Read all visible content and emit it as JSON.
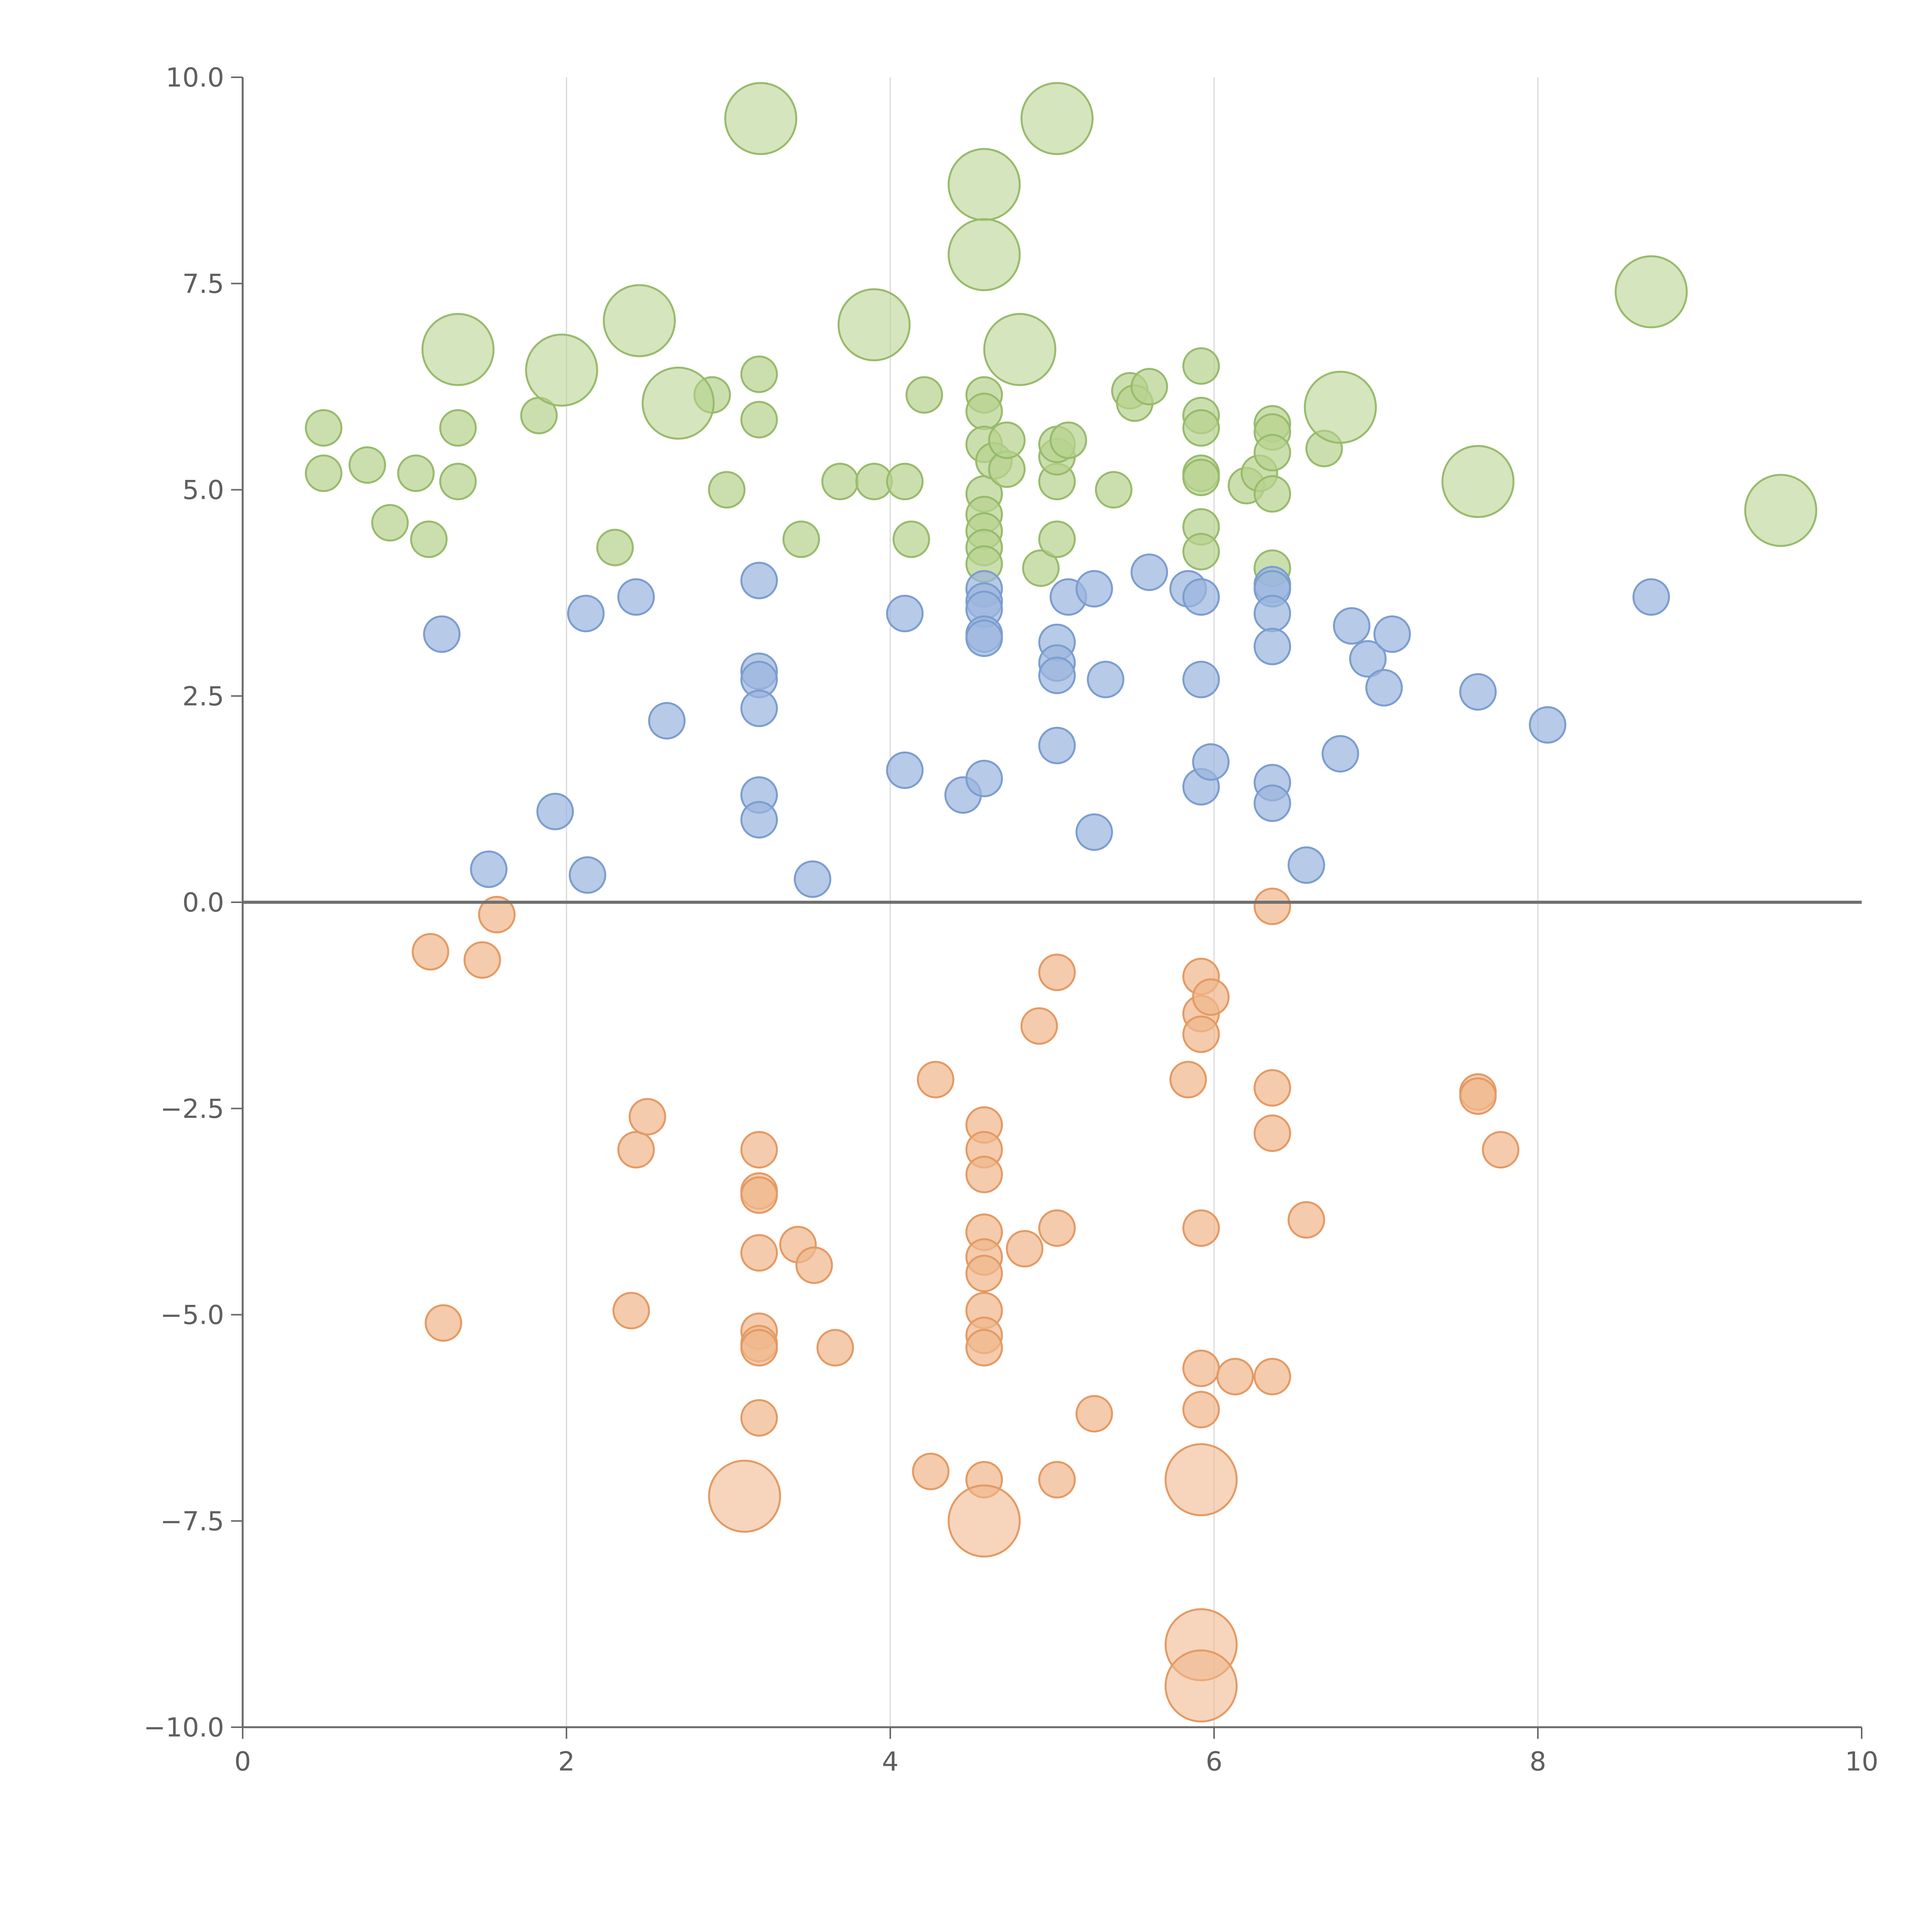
{
  "chart_data": {
    "type": "scatter",
    "title": "",
    "xlabel": "",
    "ylabel": "",
    "xlim": [
      0,
      10
    ],
    "ylim": [
      -10,
      10
    ],
    "x_ticks": [
      "0",
      "2",
      "4",
      "6",
      "8",
      "10"
    ],
    "y_ticks": [
      "−10.0",
      "−7.5",
      "−5.0",
      "−2.5",
      "0.0",
      "2.5",
      "5.0",
      "7.5",
      "10.0"
    ],
    "x_tick_values": [
      0,
      2,
      4,
      6,
      8,
      10
    ],
    "y_tick_values": [
      -10,
      -7.5,
      -5,
      -2.5,
      0,
      2.5,
      5,
      7.5,
      10
    ],
    "vertical_grid_at": [
      2,
      4,
      6,
      8
    ],
    "horizontal_line_at": 0,
    "marker_size_note": "larger circles mark highlighted points",
    "series": [
      {
        "color": "#b7d28f",
        "edge": "#98bb6c",
        "points": [
          [
            0.5,
            5.75,
            0
          ],
          [
            0.5,
            5.2,
            0
          ],
          [
            0.77,
            5.3,
            0
          ],
          [
            1.07,
            5.2,
            0
          ],
          [
            1.15,
            4.4,
            0
          ],
          [
            0.91,
            4.6,
            0
          ],
          [
            1.33,
            5.75,
            0
          ],
          [
            1.33,
            5.1,
            0
          ],
          [
            1.83,
            5.9,
            0
          ],
          [
            2.3,
            4.3,
            0
          ],
          [
            2.9,
            6.15,
            0
          ],
          [
            2.99,
            5.0,
            0
          ],
          [
            3.19,
            6.4,
            0
          ],
          [
            3.19,
            5.85,
            0
          ],
          [
            3.45,
            4.4,
            0
          ],
          [
            3.69,
            5.1,
            0
          ],
          [
            3.9,
            5.1,
            0
          ],
          [
            4.09,
            5.1,
            0
          ],
          [
            4.13,
            4.4,
            0
          ],
          [
            4.21,
            6.15,
            0
          ],
          [
            4.58,
            6.15,
            0
          ],
          [
            4.58,
            5.95,
            0
          ],
          [
            4.58,
            5.55,
            0
          ],
          [
            4.58,
            4.95,
            0
          ],
          [
            4.58,
            4.7,
            0
          ],
          [
            4.58,
            4.5,
            0
          ],
          [
            4.58,
            4.3,
            0
          ],
          [
            4.58,
            4.1,
            0
          ],
          [
            4.64,
            5.35,
            0
          ],
          [
            4.72,
            5.25,
            0
          ],
          [
            4.72,
            5.6,
            0
          ],
          [
            4.93,
            4.05,
            0
          ],
          [
            5.03,
            5.1,
            0
          ],
          [
            5.03,
            5.4,
            0
          ],
          [
            5.03,
            5.55,
            0
          ],
          [
            5.03,
            4.4,
            0
          ],
          [
            5.1,
            5.6,
            0
          ],
          [
            5.38,
            5.0,
            0
          ],
          [
            5.48,
            6.2,
            0
          ],
          [
            5.51,
            6.05,
            0
          ],
          [
            5.6,
            6.25,
            0
          ],
          [
            5.92,
            6.5,
            0
          ],
          [
            5.92,
            5.9,
            0
          ],
          [
            5.92,
            5.75,
            0
          ],
          [
            5.92,
            5.2,
            0
          ],
          [
            5.92,
            5.15,
            0
          ],
          [
            5.92,
            4.55,
            0
          ],
          [
            5.92,
            4.25,
            0
          ],
          [
            6.2,
            5.05,
            0
          ],
          [
            6.28,
            5.2,
            0
          ],
          [
            6.36,
            5.8,
            0
          ],
          [
            6.36,
            5.7,
            0
          ],
          [
            6.36,
            5.45,
            0
          ],
          [
            6.36,
            4.95,
            0
          ],
          [
            6.36,
            4.05,
            0
          ],
          [
            6.68,
            5.5,
            0
          ],
          [
            1.33,
            6.7,
            1
          ],
          [
            1.97,
            6.45,
            1
          ],
          [
            2.45,
            7.05,
            1
          ],
          [
            2.69,
            6.05,
            1
          ],
          [
            3.2,
            9.5,
            1
          ],
          [
            3.9,
            7.0,
            1
          ],
          [
            4.58,
            8.7,
            1
          ],
          [
            4.58,
            7.85,
            1
          ],
          [
            4.8,
            6.7,
            1
          ],
          [
            5.03,
            9.5,
            1
          ],
          [
            6.78,
            6.0,
            1
          ],
          [
            7.63,
            5.1,
            1
          ],
          [
            8.7,
            7.4,
            1
          ],
          [
            9.5,
            4.75,
            1
          ]
        ]
      },
      {
        "color": "#9bb5de",
        "edge": "#7c9dd0",
        "points": [
          [
            1.23,
            3.25,
            0
          ],
          [
            1.52,
            0.4,
            0
          ],
          [
            1.93,
            1.1,
            0
          ],
          [
            2.12,
            3.5,
            0
          ],
          [
            2.13,
            0.33,
            0
          ],
          [
            2.43,
            3.7,
            0
          ],
          [
            2.62,
            2.2,
            0
          ],
          [
            3.19,
            3.9,
            0
          ],
          [
            3.19,
            2.8,
            0
          ],
          [
            3.19,
            2.7,
            0
          ],
          [
            3.19,
            2.35,
            0
          ],
          [
            3.19,
            1.3,
            0
          ],
          [
            3.19,
            1.0,
            0
          ],
          [
            3.52,
            0.28,
            0
          ],
          [
            4.09,
            3.5,
            0
          ],
          [
            4.09,
            1.6,
            0
          ],
          [
            4.45,
            1.3,
            0
          ],
          [
            4.58,
            3.8,
            0
          ],
          [
            4.58,
            3.65,
            0
          ],
          [
            4.58,
            3.55,
            0
          ],
          [
            4.58,
            3.25,
            0
          ],
          [
            4.58,
            3.2,
            0
          ],
          [
            4.58,
            1.5,
            0
          ],
          [
            5.03,
            3.15,
            0
          ],
          [
            5.03,
            2.9,
            0
          ],
          [
            5.03,
            2.75,
            0
          ],
          [
            5.03,
            1.9,
            0
          ],
          [
            5.1,
            3.7,
            0
          ],
          [
            5.26,
            3.8,
            0
          ],
          [
            5.26,
            0.85,
            0
          ],
          [
            5.33,
            2.7,
            0
          ],
          [
            5.6,
            4.0,
            0
          ],
          [
            5.84,
            3.8,
            0
          ],
          [
            5.92,
            3.7,
            0
          ],
          [
            5.92,
            2.7,
            0
          ],
          [
            5.92,
            1.4,
            0
          ],
          [
            5.98,
            1.7,
            0
          ],
          [
            6.36,
            3.85,
            0
          ],
          [
            6.36,
            3.8,
            0
          ],
          [
            6.36,
            3.5,
            0
          ],
          [
            6.36,
            3.1,
            0
          ],
          [
            6.36,
            1.45,
            0
          ],
          [
            6.36,
            1.2,
            0
          ],
          [
            6.57,
            0.45,
            0
          ],
          [
            6.78,
            1.8,
            0
          ],
          [
            6.85,
            3.35,
            0
          ],
          [
            6.95,
            2.95,
            0
          ],
          [
            7.05,
            2.6,
            0
          ],
          [
            7.1,
            3.25,
            0
          ],
          [
            7.63,
            2.55,
            0
          ],
          [
            8.06,
            2.15,
            0
          ],
          [
            8.7,
            3.7,
            0
          ]
        ]
      },
      {
        "color": "#f0b78c",
        "edge": "#e49a64",
        "points": [
          [
            1.16,
            -0.6,
            0
          ],
          [
            1.48,
            -0.7,
            0
          ],
          [
            1.57,
            -0.15,
            0
          ],
          [
            1.24,
            -5.1,
            0
          ],
          [
            2.43,
            -3.0,
            0
          ],
          [
            2.5,
            -2.6,
            0
          ],
          [
            2.4,
            -4.95,
            0
          ],
          [
            3.19,
            -3.0,
            0
          ],
          [
            3.19,
            -3.5,
            0
          ],
          [
            3.19,
            -3.55,
            0
          ],
          [
            3.19,
            -4.25,
            0
          ],
          [
            3.19,
            -5.2,
            0
          ],
          [
            3.19,
            -5.35,
            0
          ],
          [
            3.19,
            -5.4,
            0
          ],
          [
            3.19,
            -6.25,
            0
          ],
          [
            3.43,
            -4.15,
            0
          ],
          [
            3.53,
            -4.4,
            0
          ],
          [
            3.66,
            -5.4,
            0
          ],
          [
            4.25,
            -6.9,
            0
          ],
          [
            4.28,
            -2.15,
            0
          ],
          [
            4.58,
            -2.7,
            0
          ],
          [
            4.58,
            -3.0,
            0
          ],
          [
            4.58,
            -3.3,
            0
          ],
          [
            4.58,
            -4.0,
            0
          ],
          [
            4.58,
            -4.3,
            0
          ],
          [
            4.58,
            -4.5,
            0
          ],
          [
            4.58,
            -4.95,
            0
          ],
          [
            4.58,
            -5.25,
            0
          ],
          [
            4.58,
            -5.4,
            0
          ],
          [
            4.58,
            -7.0,
            0
          ],
          [
            4.83,
            -4.2,
            0
          ],
          [
            4.92,
            -1.5,
            0
          ],
          [
            5.03,
            -0.85,
            0
          ],
          [
            5.03,
            -3.95,
            0
          ],
          [
            5.03,
            -7.0,
            0
          ],
          [
            5.26,
            -6.2,
            0
          ],
          [
            5.84,
            -2.15,
            0
          ],
          [
            5.92,
            -0.9,
            0
          ],
          [
            5.92,
            -1.35,
            0
          ],
          [
            5.92,
            -1.6,
            0
          ],
          [
            5.92,
            -3.95,
            0
          ],
          [
            5.92,
            -5.65,
            0
          ],
          [
            5.92,
            -6.15,
            0
          ],
          [
            5.98,
            -1.15,
            0
          ],
          [
            6.13,
            -5.75,
            0
          ],
          [
            6.36,
            -0.05,
            0
          ],
          [
            6.36,
            -2.25,
            0
          ],
          [
            6.36,
            -2.8,
            0
          ],
          [
            6.36,
            -5.75,
            0
          ],
          [
            6.57,
            -3.85,
            0
          ],
          [
            7.63,
            -2.3,
            0
          ],
          [
            7.63,
            -2.35,
            0
          ],
          [
            7.77,
            -3.0,
            0
          ],
          [
            3.1,
            -7.2,
            1
          ],
          [
            4.58,
            -7.5,
            1
          ],
          [
            5.92,
            -7.0,
            1
          ],
          [
            5.92,
            -9.0,
            1
          ],
          [
            5.92,
            -9.5,
            1
          ]
        ]
      }
    ],
    "annotations": [
      {
        "text": "",
        "x": 1.97,
        "y": 6.45
      },
      {
        "text": "",
        "x": 4.58,
        "y": 7.85
      },
      {
        "text": "",
        "x": 7.63,
        "y": 5.1
      },
      {
        "text": "",
        "x": 8.7,
        "y": 7.4
      },
      {
        "text": "",
        "x": 5.92,
        "y": -7.0
      }
    ]
  }
}
